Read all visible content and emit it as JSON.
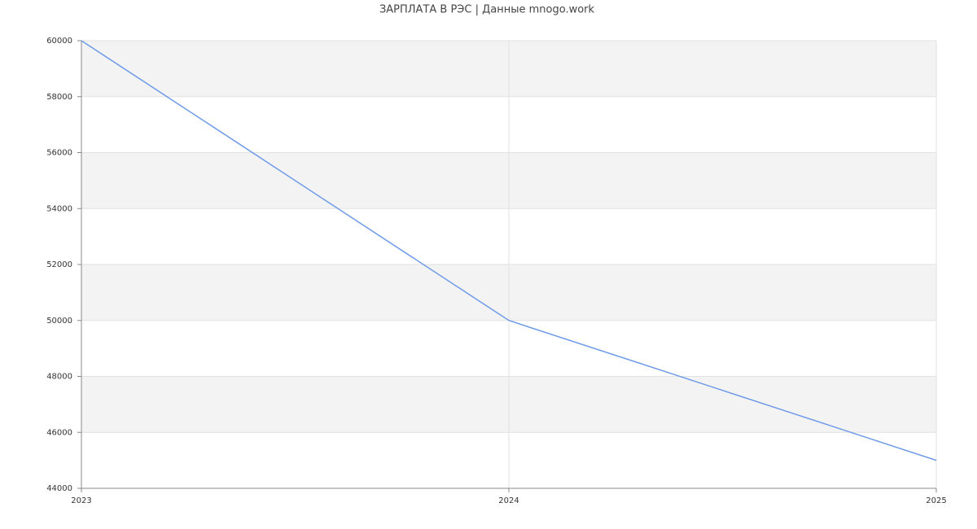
{
  "chart_data": {
    "type": "line",
    "title": "ЗАРПЛАТА В РЭС | Данные mnogo.work",
    "x": [
      2023,
      2024,
      2025
    ],
    "values": [
      60000,
      50000,
      45000
    ],
    "color": "#6f9be8",
    "xlim": [
      2023,
      2025
    ],
    "xticks": [
      2023,
      2024,
      2025
    ],
    "ylim": [
      44000,
      60000
    ],
    "yticks": [
      44000,
      46000,
      48000,
      50000,
      52000,
      54000,
      56000,
      58000,
      60000
    ],
    "grid": true
  }
}
